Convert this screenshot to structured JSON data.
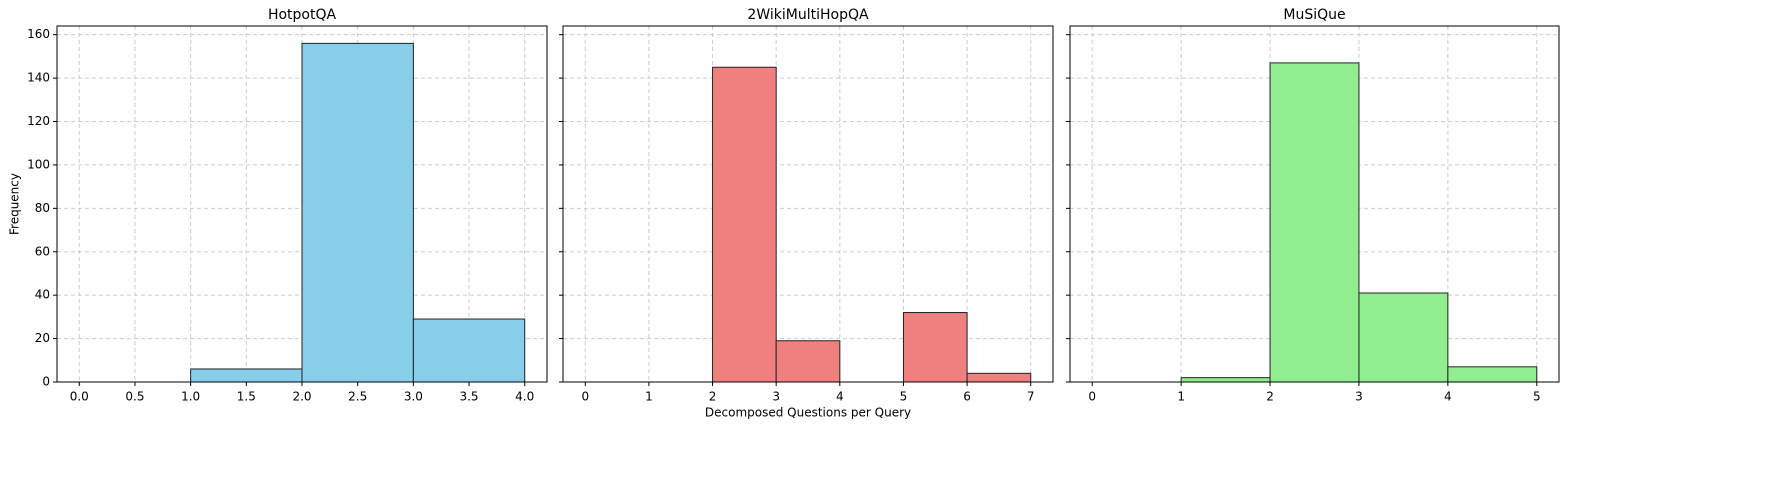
{
  "chart_data": [
    {
      "type": "histogram",
      "title": "HotpotQA",
      "ylabel": "Frequency",
      "bins": [
        1,
        2,
        3,
        4
      ],
      "counts": [
        6,
        156,
        29
      ],
      "color": "#87ceeb",
      "xlim": [
        -0.2,
        4.2
      ],
      "xticks": [
        {
          "value": 0,
          "label": "0.0"
        },
        0.5,
        {
          "value": 1,
          "label": "1.0"
        },
        1.5,
        {
          "value": 2,
          "label": "2.0"
        },
        2.5,
        {
          "value": 3,
          "label": "3.0"
        },
        3.5,
        {
          "value": 4,
          "label": "4.0"
        }
      ],
      "ylim": [
        0,
        164
      ],
      "yticks": [
        0,
        20,
        40,
        60,
        80,
        100,
        120,
        140,
        160
      ],
      "grid": true
    },
    {
      "type": "histogram",
      "title": "2WikiMultiHopQA",
      "xlabel": "Decomposed Questions per Query",
      "bins": [
        2,
        3,
        4,
        5,
        6,
        7
      ],
      "counts": [
        145,
        19,
        0,
        32,
        4
      ],
      "color": "#f08080",
      "xlim": [
        -0.35,
        7.35
      ],
      "xticks": [
        0,
        1,
        2,
        3,
        4,
        5,
        6,
        7
      ],
      "ylim": [
        0,
        164
      ],
      "yticks": [
        0,
        20,
        40,
        60,
        80,
        100,
        120,
        140,
        160
      ],
      "grid": true
    },
    {
      "type": "histogram",
      "title": "MuSiQue",
      "bins": [
        1,
        2,
        3,
        4,
        5
      ],
      "counts": [
        2,
        147,
        41,
        7
      ],
      "color": "#90ee90",
      "xlim": [
        -0.25,
        5.25
      ],
      "xticks": [
        0,
        1,
        2,
        3,
        4,
        5
      ],
      "ylim": [
        0,
        164
      ],
      "yticks": [
        0,
        20,
        40,
        60,
        80,
        100,
        120,
        140,
        160
      ],
      "grid": true
    }
  ]
}
